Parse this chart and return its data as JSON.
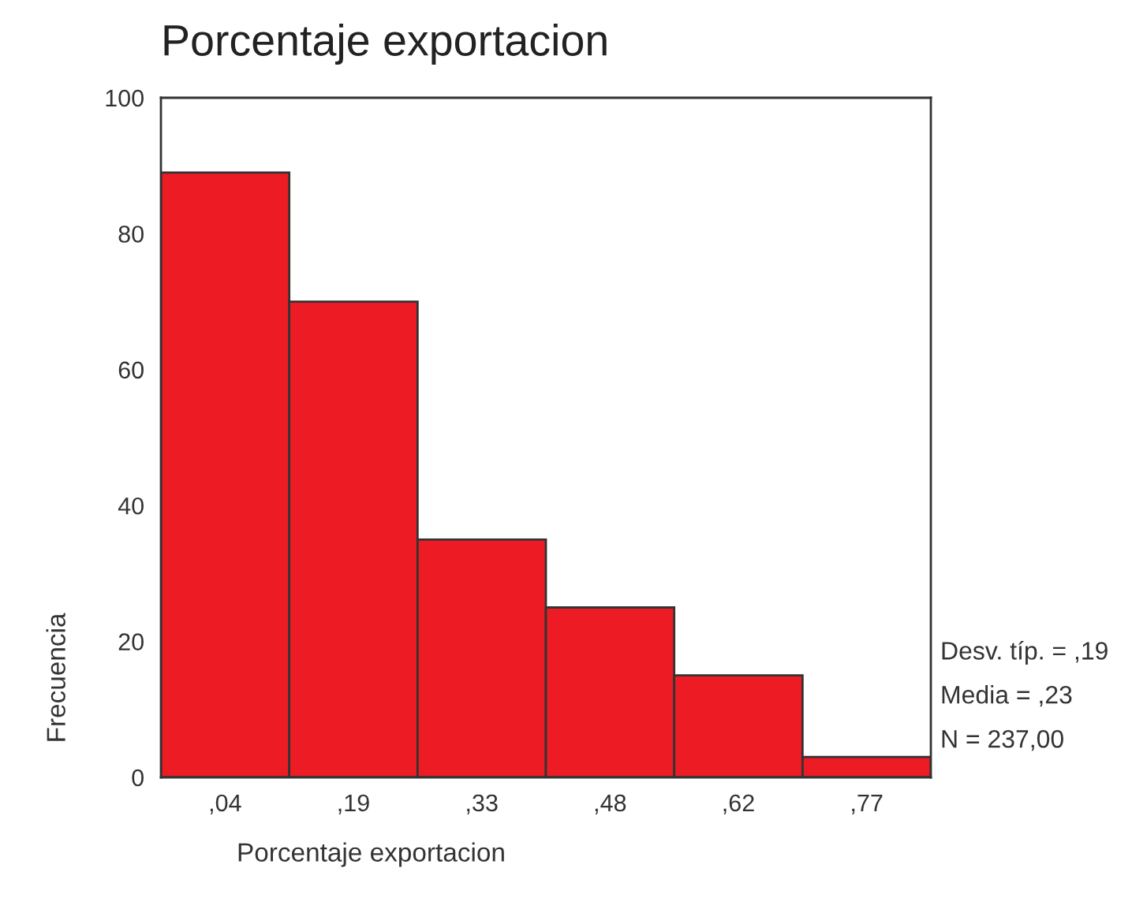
{
  "chart_data": {
    "type": "bar",
    "title": "Porcentaje exportacion",
    "xlabel": "Porcentaje exportacion",
    "ylabel": "Frecuencia",
    "categories": [
      ",04",
      ",19",
      ",33",
      ",48",
      ",62",
      ",77"
    ],
    "values": [
      89,
      70,
      35,
      25,
      15,
      3
    ],
    "color": "#ed1c24",
    "ylim": [
      0,
      100
    ],
    "yticks": [
      0,
      20,
      40,
      60,
      80,
      100
    ],
    "annotations": [
      "Desv. típ. = ,19",
      "Media = ,23",
      "N = 237,00"
    ],
    "grid": false,
    "legend": false
  }
}
